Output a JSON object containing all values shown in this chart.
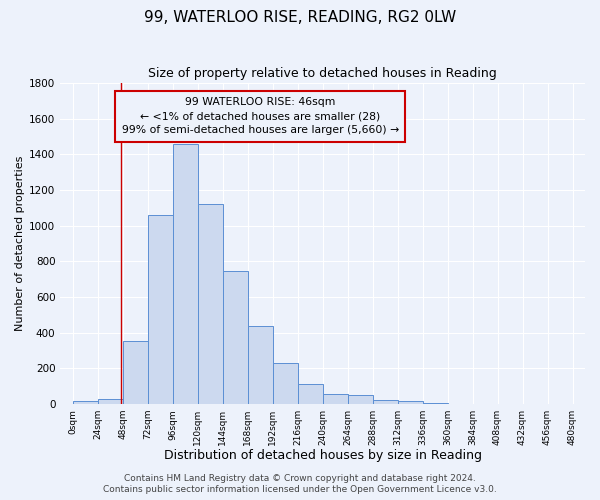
{
  "title": "99, WATERLOO RISE, READING, RG2 0LW",
  "subtitle": "Size of property relative to detached houses in Reading",
  "xlabel": "Distribution of detached houses by size in Reading",
  "ylabel": "Number of detached properties",
  "bar_edges": [
    0,
    24,
    48,
    72,
    96,
    120,
    144,
    168,
    192,
    216,
    240,
    264,
    288,
    312,
    336,
    360,
    384,
    408,
    432,
    456,
    480
  ],
  "bar_heights": [
    15,
    28,
    355,
    1060,
    1460,
    1120,
    745,
    440,
    230,
    110,
    55,
    50,
    25,
    15,
    5,
    3,
    2,
    1,
    0,
    0
  ],
  "bar_facecolor": "#ccd9ef",
  "bar_edgecolor": "#5b8fd4",
  "property_line_x": 46,
  "annotation_line_color": "#cc0000",
  "annotation_box_edgecolor": "#cc0000",
  "annotation_text": "99 WATERLOO RISE: 46sqm\n← <1% of detached houses are smaller (28)\n99% of semi-detached houses are larger (5,660) →",
  "ylim": [
    0,
    1800
  ],
  "yticks": [
    0,
    200,
    400,
    600,
    800,
    1000,
    1200,
    1400,
    1600,
    1800
  ],
  "xtick_labels": [
    "0sqm",
    "24sqm",
    "48sqm",
    "72sqm",
    "96sqm",
    "120sqm",
    "144sqm",
    "168sqm",
    "192sqm",
    "216sqm",
    "240sqm",
    "264sqm",
    "288sqm",
    "312sqm",
    "336sqm",
    "360sqm",
    "384sqm",
    "408sqm",
    "432sqm",
    "456sqm",
    "480sqm"
  ],
  "footer_line1": "Contains HM Land Registry data © Crown copyright and database right 2024.",
  "footer_line2": "Contains public sector information licensed under the Open Government Licence v3.0.",
  "background_color": "#edf2fb",
  "title_fontsize": 11,
  "subtitle_fontsize": 9,
  "xlabel_fontsize": 9,
  "ylabel_fontsize": 8,
  "footer_fontsize": 6.5
}
